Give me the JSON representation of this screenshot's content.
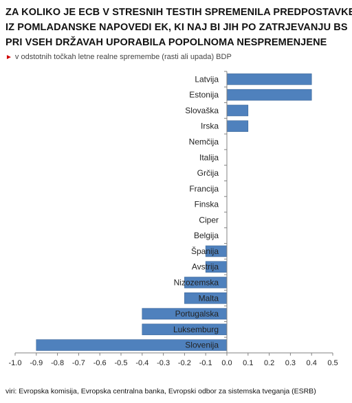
{
  "chart_data": {
    "type": "bar",
    "orientation": "horizontal",
    "title_lines": [
      "ZA KOLIKO JE ECB V STRESNIH TESTIH SPREMENILA PREDPOSTAVKE",
      "IZ POMLADANSKE NAPOVEDI EK, KI NAJ BI JIH PO ZATRJEVANJU BS",
      "PRI VSEH DRŽAVAH UPORABILA POPOLNOMA NESPREMENJENE"
    ],
    "subtitle": "v odstotnih točkah letne realne spremembe (rasti ali upada) BDP",
    "source": "viri: Evropska komisija, Evropska centralna banka, Evropski odbor za sistemska tveganja (ESRB)",
    "categories": [
      "Latvija",
      "Estonija",
      "Slovaška",
      "Irska",
      "Nemčija",
      "Italija",
      "Grčija",
      "Francija",
      "Finska",
      "Ciper",
      "Belgija",
      "Španija",
      "Avstrija",
      "Nizozemska",
      "Malta",
      "Portugalska",
      "Luksemburg",
      "Slovenija"
    ],
    "values": [
      0.4,
      0.4,
      0.1,
      0.1,
      0.0,
      0.0,
      0.0,
      0.0,
      0.0,
      0.0,
      0.0,
      -0.1,
      -0.1,
      -0.2,
      -0.2,
      -0.4,
      -0.4,
      -0.9
    ],
    "xlim": [
      -1.0,
      0.5
    ],
    "xticks": [
      "-1.0",
      "-0.9",
      "-0.8",
      "-0.7",
      "-0.6",
      "-0.5",
      "-0.4",
      "-0.3",
      "-0.2",
      "-0.1",
      "0.0",
      "0.1",
      "0.2",
      "0.3",
      "0.4",
      "0.5"
    ],
    "grid": false,
    "colors": {
      "bar": "#4f81bd",
      "bar_stroke": "#3a6597",
      "axis": "#808080",
      "marker": "#d00000"
    }
  }
}
